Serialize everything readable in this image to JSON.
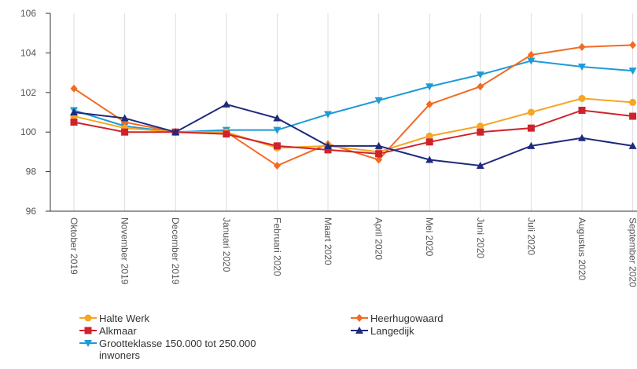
{
  "chart_data": {
    "type": "line",
    "x": [
      "Oktober 2019",
      "November 2019",
      "December 2019",
      "Januari 2020",
      "Februari 2020",
      "Maart 2020",
      "April 2020",
      "Mei 2020",
      "Juni 2020",
      "Juli 2020",
      "Augustus 2020",
      "September 2020"
    ],
    "ylim": [
      96,
      106
    ],
    "yticks": [
      96,
      98,
      100,
      102,
      104,
      106
    ],
    "grid": "vertical",
    "legend_position": "bottom",
    "series": [
      {
        "name": "Halte Werk",
        "color": "#f5a623",
        "marker": "circle",
        "values": [
          100.8,
          100.2,
          100.0,
          100.0,
          99.2,
          99.3,
          99.0,
          99.8,
          100.3,
          101.0,
          101.7,
          101.5
        ]
      },
      {
        "name": "Heerhugowaard",
        "color": "#f26b21",
        "marker": "diamond",
        "values": [
          102.2,
          100.5,
          100.0,
          100.0,
          98.3,
          99.4,
          98.6,
          101.4,
          102.3,
          103.9,
          104.3,
          104.4
        ]
      },
      {
        "name": "Alkmaar",
        "color": "#d0222b",
        "marker": "square",
        "values": [
          100.5,
          100.0,
          100.0,
          99.9,
          99.3,
          99.1,
          98.9,
          99.5,
          100.0,
          100.2,
          101.1,
          100.8
        ]
      },
      {
        "name": "Langedijk",
        "color": "#1f2a7c",
        "marker": "triangle-up",
        "values": [
          101.0,
          100.7,
          100.0,
          101.4,
          100.7,
          99.3,
          99.3,
          98.6,
          98.3,
          99.3,
          99.7,
          99.3
        ]
      },
      {
        "name": "Grootteklasse 150.000 tot 250.000 inwoners",
        "color": "#1e9bd7",
        "marker": "triangle-down",
        "values": [
          101.1,
          100.3,
          100.0,
          100.1,
          100.1,
          100.9,
          101.6,
          102.3,
          102.9,
          103.6,
          103.3,
          103.1
        ]
      }
    ]
  }
}
